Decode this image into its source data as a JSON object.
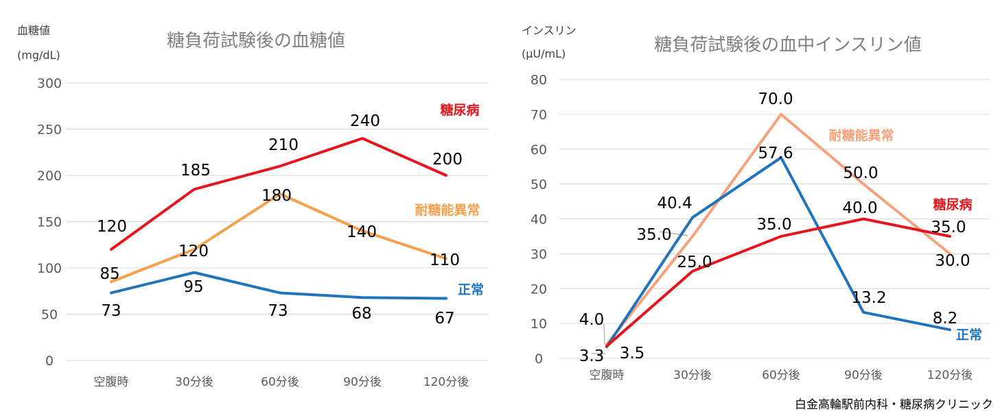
{
  "credit": "白金高輪駅前内科・糖尿病クリニック",
  "chart_data": [
    {
      "type": "line",
      "title": "糖負荷試験後の血糖値",
      "ylabel_line1": "血糖値",
      "ylabel_line2": "(mg/dL)",
      "xlabel": "",
      "categories": [
        "空腹時",
        "30分後",
        "60分後",
        "90分後",
        "120分後"
      ],
      "ylim": [
        0,
        300
      ],
      "yticks": [
        0,
        50,
        100,
        150,
        200,
        250,
        300
      ],
      "ytick_labels": [
        "0",
        "50",
        "100",
        "150",
        "200",
        "250",
        "300"
      ],
      "grid": true,
      "legend": "inline labels at line ends",
      "series": [
        {
          "name": "糖尿病",
          "color": "#e8141b",
          "values": [
            120,
            185,
            210,
            240,
            200
          ],
          "labels": [
            "120",
            "185",
            "210",
            "240",
            "200"
          ]
        },
        {
          "name": "耐糖能異常",
          "color": "#f7a04b",
          "values": [
            85,
            120,
            180,
            140,
            110
          ],
          "labels": [
            "85",
            "120",
            "180",
            "140",
            "110"
          ]
        },
        {
          "name": "正常",
          "color": "#1f74bd",
          "values": [
            73,
            95,
            73,
            68,
            67
          ],
          "labels": [
            "73",
            "95",
            "73",
            "68",
            "67"
          ]
        }
      ]
    },
    {
      "type": "line",
      "title": "糖負荷試験後の血中インスリン値",
      "ylabel_line1": "インスリン",
      "ylabel_line2": "(μU/mL)",
      "xlabel": "",
      "categories": [
        "空腹時",
        "30分後",
        "60分後",
        "90分後",
        "120分後"
      ],
      "ylim": [
        0,
        80
      ],
      "yticks": [
        0,
        10,
        20,
        30,
        40,
        50,
        60,
        70,
        80
      ],
      "ytick_labels": [
        "0",
        "10",
        "20",
        "30",
        "40",
        "50",
        "60",
        "70",
        "80"
      ],
      "grid": true,
      "legend": "inline labels at line ends",
      "series": [
        {
          "name": "耐糖能異常",
          "color": "#f7a07a",
          "values": [
            4.0,
            35.0,
            70.0,
            50.0,
            30.0
          ],
          "labels": [
            "4.0",
            "35.0",
            "70.0",
            "50.0",
            "30.0"
          ]
        },
        {
          "name": "正常",
          "color": "#1f74bd",
          "values": [
            3.3,
            40.4,
            57.6,
            13.2,
            8.2
          ],
          "labels": [
            "3.3",
            "40.4",
            "57.6",
            "13.2",
            "8.2"
          ]
        },
        {
          "name": "糖尿病",
          "color": "#e8141b",
          "values": [
            3.5,
            25.0,
            35.0,
            40.0,
            35.0
          ],
          "labels": [
            "3.5",
            "25.0",
            "35.0",
            "40.0",
            "35.0"
          ]
        }
      ]
    }
  ]
}
